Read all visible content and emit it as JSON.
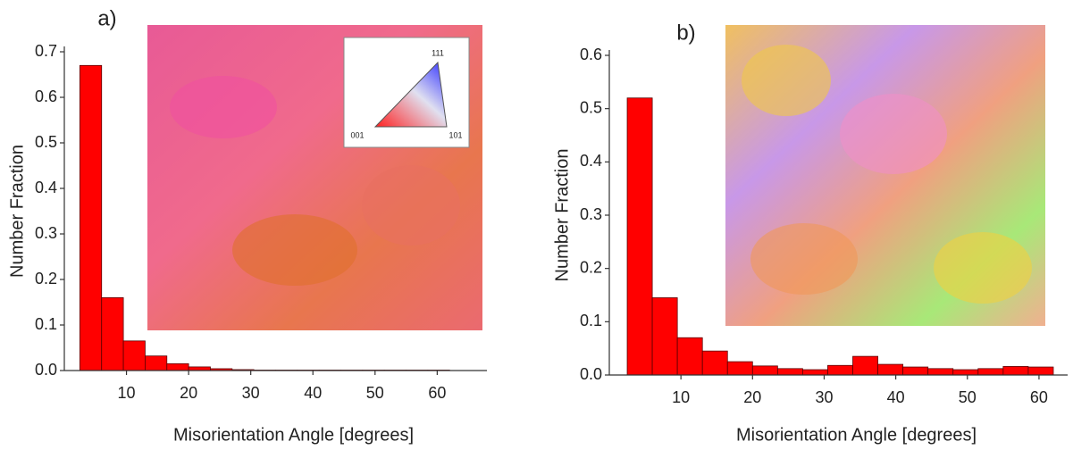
{
  "chart_data": [
    {
      "type": "histogram",
      "panel_label": "a)",
      "xlabel": "Misorientation Angle [degrees]",
      "ylabel": "Number Fraction",
      "bins": [
        2.5,
        6,
        9.5,
        13,
        16.5,
        20,
        23.5,
        27,
        30.5,
        34,
        37.5,
        41,
        44.5,
        48,
        51.5,
        55,
        58.5,
        62
      ],
      "values": [
        0.67,
        0.16,
        0.065,
        0.032,
        0.015,
        0.008,
        0.004,
        0.002,
        0.001,
        0.001,
        0.001,
        0.001,
        0.001,
        0.001,
        0.001,
        0.001,
        0.001
      ],
      "color": "#ff0000",
      "xlim": [
        0,
        68
      ],
      "ylim": [
        0,
        0.7
      ],
      "xticks": [
        10,
        20,
        30,
        40,
        50,
        60
      ],
      "yticks": [
        {
          "value": 0,
          "label": "0.0"
        },
        0.1,
        0.2,
        0.3,
        0.4,
        0.5,
        0.6,
        0.7
      ],
      "key_labels": [
        "111",
        "001",
        "101"
      ]
    },
    {
      "type": "histogram",
      "panel_label": "b)",
      "xlabel": "Misorientation Angle [degrees]",
      "ylabel": "Number Fraction",
      "bins": [
        2.5,
        6,
        9.5,
        13,
        16.5,
        20,
        23.5,
        27,
        30.5,
        34,
        37.5,
        41,
        44.5,
        48,
        51.5,
        55,
        58.5,
        62
      ],
      "values": [
        0.52,
        0.145,
        0.07,
        0.045,
        0.025,
        0.017,
        0.012,
        0.01,
        0.018,
        0.035,
        0.02,
        0.015,
        0.012,
        0.01,
        0.012,
        0.016,
        0.015
      ],
      "color": "#ff0000",
      "xlim": [
        0,
        64
      ],
      "ylim": [
        0,
        0.6
      ],
      "xticks": [
        10,
        20,
        30,
        40,
        50,
        60
      ],
      "yticks": [
        {
          "value": 0,
          "label": "0.0"
        },
        0.1,
        0.2,
        0.3,
        0.4,
        0.5,
        0.6
      ]
    }
  ]
}
